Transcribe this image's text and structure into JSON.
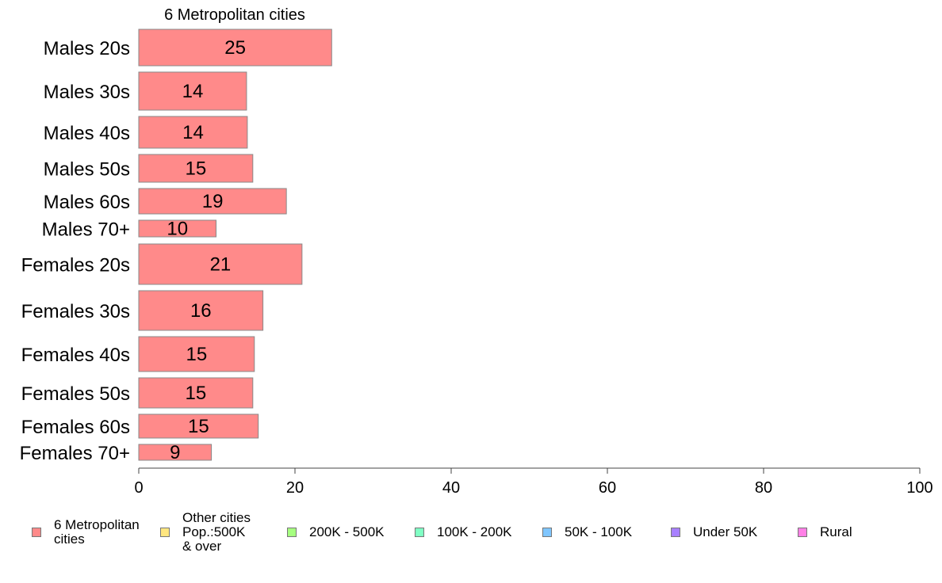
{
  "chart_data": {
    "type": "bar",
    "orientation": "horizontal",
    "title": "6 Metropolitan cities",
    "xlabel": "",
    "ylabel": "",
    "xlim": [
      0,
      100
    ],
    "x_ticks": [
      "0",
      "20",
      "40",
      "60",
      "80",
      "100"
    ],
    "grid": false,
    "categories": [
      "Males 20s",
      "Males 30s",
      "Males 40s",
      "Males 50s",
      "Males 60s",
      "Males 70+",
      "Females 20s",
      "Females 30s",
      "Females 40s",
      "Females 50s",
      "Females 60s",
      "Females 70+"
    ],
    "series": [
      {
        "name": "6 Metropolitan\n cities",
        "color": "#ff8a8a",
        "values": [
          24.7,
          13.8,
          13.9,
          14.6,
          18.9,
          9.9,
          20.9,
          15.9,
          14.8,
          14.6,
          15.3,
          9.3
        ],
        "data_labels": [
          "25",
          "14",
          "14",
          "15",
          "19",
          "10",
          "21",
          "16",
          "15",
          "15",
          "15",
          "9"
        ]
      }
    ],
    "legend_position": "bottom",
    "legend": [
      {
        "label": "6 Metropolitan\n cities",
        "color": "#ff8a8a"
      },
      {
        "label": "Other cities\nPop.:500K\n & over",
        "color": "#ffe680"
      },
      {
        "label": "200K - 500K",
        "color": "#a6ff80"
      },
      {
        "label": "100K - 200K",
        "color": "#80ffc4"
      },
      {
        "label": "50K - 100K",
        "color": "#80c6ff"
      },
      {
        "label": "Under 50K",
        "color": "#a880ff"
      },
      {
        "label": "Rural",
        "color": "#ff80e6"
      }
    ]
  }
}
